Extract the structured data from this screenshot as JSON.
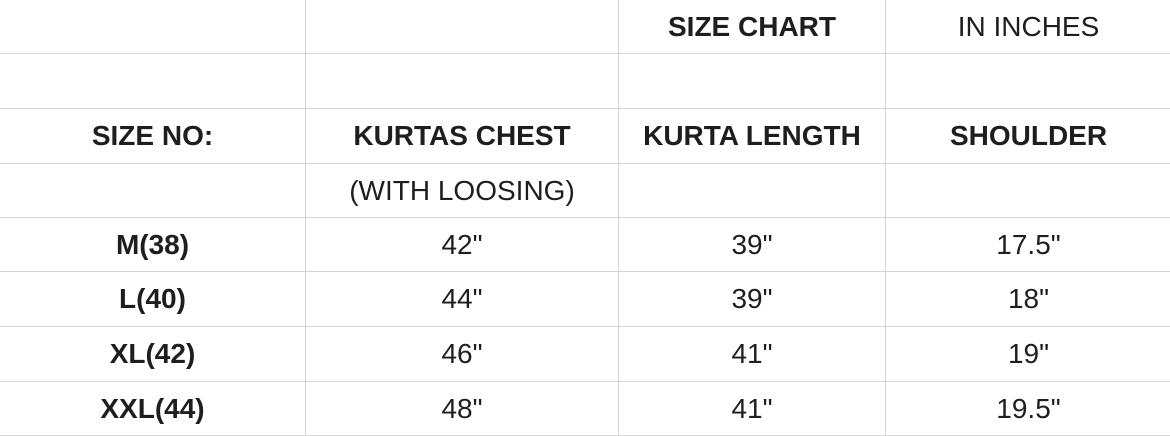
{
  "title_row": {
    "col3": "SIZE CHART",
    "col4": "IN INCHES"
  },
  "headers": [
    "SIZE NO:",
    "KURTAS CHEST",
    "KURTA LENGTH",
    "SHOULDER"
  ],
  "subheader": {
    "col2": "(WITH LOOSING)"
  },
  "rows": [
    [
      "M(38)",
      "42\"",
      "39\"",
      "17.5\""
    ],
    [
      "L(40)",
      "44\"",
      "39\"",
      "18\""
    ],
    [
      "XL(42)",
      "46\"",
      "41\"",
      "19\""
    ],
    [
      "XXL(44)",
      "48\"",
      "41\"",
      "19.5\""
    ]
  ]
}
